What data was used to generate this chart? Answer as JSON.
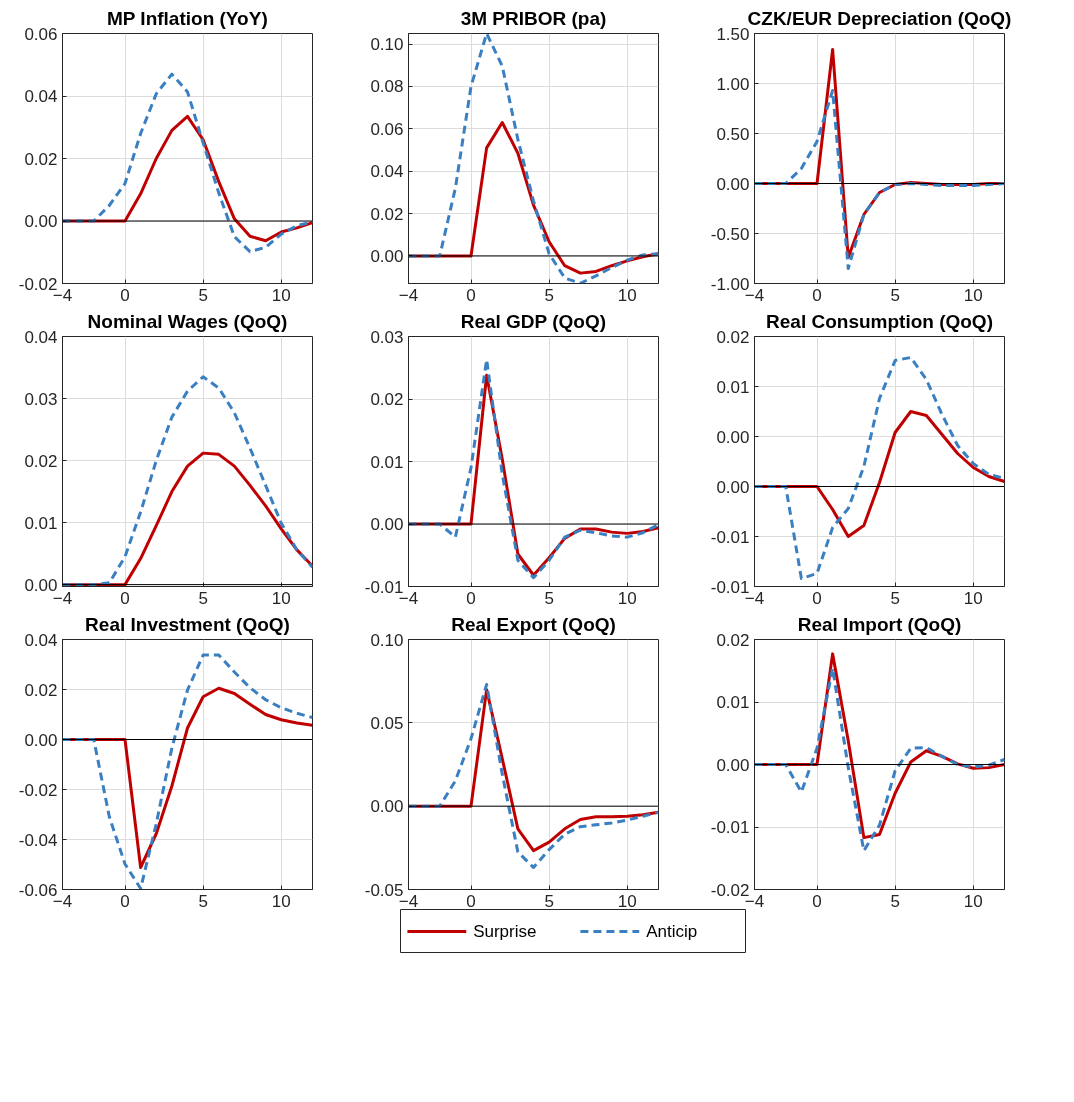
{
  "chart_data": [
    {
      "type": "line",
      "title": "MP Inflation (YoY)",
      "x": [
        -4,
        -3,
        -2,
        -1,
        0,
        1,
        2,
        3,
        4,
        5,
        6,
        7,
        8,
        9,
        10,
        11,
        12
      ],
      "xlim": [
        -4,
        12
      ],
      "xticks": [
        -4,
        0,
        5,
        10
      ],
      "ylim": [
        -0.02,
        0.06
      ],
      "yticks": [
        {
          "value": -0.02,
          "label": "-0.02"
        },
        {
          "value": 0,
          "label": "0.00"
        },
        {
          "value": 0.02,
          "label": "0.02"
        },
        {
          "value": 0.04,
          "label": "0.04"
        },
        {
          "value": 0.06,
          "label": "0.06"
        }
      ],
      "grid": true,
      "ref_lines": [
        {
          "axis": "y",
          "value": 0,
          "color": "#000000"
        }
      ],
      "series": [
        {
          "color": "#c00000",
          "line_style": "solid",
          "values": [
            0,
            0,
            0,
            0,
            0,
            0.0087,
            0.02,
            0.029,
            0.0335,
            0.026,
            0.0126,
            0.0007,
            -0.0049,
            -0.0063,
            -0.0035,
            -0.0022,
            -0.0005
          ]
        },
        {
          "color": "#3a7fc1",
          "line_style": "dashed",
          "values": [
            0,
            0,
            0,
            0.005,
            0.012,
            0.028,
            0.0407,
            0.047,
            0.0413,
            0.025,
            0.009,
            -0.005,
            -0.0098,
            -0.0084,
            -0.0042,
            -0.0015,
            -0.0003
          ]
        }
      ]
    },
    {
      "type": "line",
      "title": "3M PRIBOR (pa)",
      "x": [
        -4,
        -3,
        -2,
        -1,
        0,
        1,
        2,
        3,
        4,
        5,
        6,
        7,
        8,
        9,
        10,
        11,
        12
      ],
      "xlim": [
        -4,
        12
      ],
      "xticks": [
        -4,
        0,
        5,
        10
      ],
      "ylim": [
        -0.013,
        0.105
      ],
      "yticks": [
        {
          "value": 0,
          "label": "0.00"
        },
        {
          "value": 0.02,
          "label": "0.02"
        },
        {
          "value": 0.04,
          "label": "0.04"
        },
        {
          "value": 0.06,
          "label": "0.06"
        },
        {
          "value": 0.08,
          "label": "0.08"
        },
        {
          "value": 0.1,
          "label": "0.10"
        }
      ],
      "grid": true,
      "ref_lines": [
        {
          "axis": "y",
          "value": 0,
          "color": "#000000"
        }
      ],
      "series": [
        {
          "color": "#c00000",
          "line_style": "solid",
          "values": [
            0,
            0,
            0,
            0,
            0,
            0.051,
            0.063,
            0.0485,
            0.024,
            0.0067,
            -0.0046,
            -0.0081,
            -0.0073,
            -0.0046,
            -0.0023,
            -0.0004,
            0.001
          ]
        },
        {
          "color": "#3a7fc1",
          "line_style": "dashed",
          "values": [
            0,
            0,
            0,
            0.032,
            0.08,
            0.105,
            0.0896,
            0.055,
            0.026,
            0.001,
            -0.0104,
            -0.0129,
            -0.0094,
            -0.0055,
            -0.002,
            0.0005,
            0.001
          ]
        }
      ]
    },
    {
      "type": "line",
      "title": "CZK/EUR Depreciation (QoQ)",
      "x": [
        -4,
        -3,
        -2,
        -1,
        0,
        1,
        2,
        3,
        4,
        5,
        6,
        7,
        8,
        9,
        10,
        11,
        12
      ],
      "xlim": [
        -4,
        12
      ],
      "xticks": [
        -4,
        0,
        5,
        10
      ],
      "ylim": [
        -1.0,
        1.5
      ],
      "yticks": [
        {
          "value": -1,
          "label": "-1.00"
        },
        {
          "value": -0.5,
          "label": "-0.50"
        },
        {
          "value": 0,
          "label": "0.00"
        },
        {
          "value": 0.5,
          "label": "0.50"
        },
        {
          "value": 1,
          "label": "1.00"
        },
        {
          "value": 1.5,
          "label": "1.50"
        }
      ],
      "grid": true,
      "ref_lines": [
        {
          "axis": "y",
          "value": 0,
          "color": "#000000"
        }
      ],
      "series": [
        {
          "color": "#c00000",
          "line_style": "solid",
          "values": [
            0,
            0,
            0,
            0,
            0,
            1.34,
            -0.74,
            -0.31,
            -0.09,
            -0.01,
            0.01,
            0,
            -0.01,
            -0.01,
            -0.01,
            0,
            0
          ]
        },
        {
          "color": "#3a7fc1",
          "line_style": "dashed",
          "values": [
            0,
            0,
            0,
            0.15,
            0.42,
            0.93,
            -0.85,
            -0.31,
            -0.09,
            -0.01,
            0,
            -0.01,
            -0.02,
            -0.02,
            -0.02,
            -0.01,
            0
          ]
        }
      ]
    },
    {
      "type": "line",
      "title": "Nominal Wages (QoQ)",
      "x": [
        -4,
        -3,
        -2,
        -1,
        0,
        1,
        2,
        3,
        4,
        5,
        6,
        7,
        8,
        9,
        10,
        11,
        12
      ],
      "xlim": [
        -4,
        12
      ],
      "xticks": [
        -4,
        0,
        5,
        10
      ],
      "ylim": [
        -0.0003,
        0.04
      ],
      "yticks": [
        {
          "value": 0,
          "label": "0.00"
        },
        {
          "value": 0.01,
          "label": "0.01"
        },
        {
          "value": 0.02,
          "label": "0.02"
        },
        {
          "value": 0.03,
          "label": "0.03"
        },
        {
          "value": 0.04,
          "label": "0.04"
        }
      ],
      "grid": true,
      "ref_lines": [
        {
          "axis": "y",
          "value": 0,
          "color": "#000000"
        }
      ],
      "series": [
        {
          "color": "#c00000",
          "line_style": "solid",
          "values": [
            0,
            0,
            0,
            0,
            0,
            0.0042,
            0.0095,
            0.015,
            0.0191,
            0.0212,
            0.021,
            0.0191,
            0.016,
            0.0127,
            0.009,
            0.0056,
            0.003
          ]
        },
        {
          "color": "#3a7fc1",
          "line_style": "dashed",
          "values": [
            0,
            0,
            0,
            0.0003,
            0.0045,
            0.0117,
            0.02,
            0.027,
            0.0312,
            0.0335,
            0.0317,
            0.0277,
            0.022,
            0.016,
            0.0099,
            0.0056,
            0.0028
          ]
        }
      ]
    },
    {
      "type": "line",
      "title": "Real GDP (QoQ)",
      "x": [
        -4,
        -3,
        -2,
        -1,
        0,
        1,
        2,
        3,
        4,
        5,
        6,
        7,
        8,
        9,
        10,
        11,
        12
      ],
      "xlim": [
        -4,
        12
      ],
      "xticks": [
        -4,
        0,
        5,
        10
      ],
      "ylim": [
        -0.01,
        0.03
      ],
      "yticks": [
        {
          "value": -0.01,
          "label": "-0.01"
        },
        {
          "value": 0,
          "label": "0.00"
        },
        {
          "value": 0.01,
          "label": "0.01"
        },
        {
          "value": 0.02,
          "label": "0.02"
        },
        {
          "value": 0.03,
          "label": "0.03"
        }
      ],
      "grid": true,
      "ref_lines": [
        {
          "axis": "y",
          "value": 0,
          "color": "#000000"
        }
      ],
      "series": [
        {
          "color": "#c00000",
          "line_style": "solid",
          "values": [
            0,
            0,
            0,
            0,
            0,
            0.0238,
            0.0104,
            -0.0048,
            -0.0082,
            -0.0054,
            -0.0023,
            -0.0008,
            -0.0008,
            -0.0013,
            -0.0015,
            -0.0012,
            -0.0006
          ]
        },
        {
          "color": "#3a7fc1",
          "line_style": "dashed",
          "values": [
            0,
            0,
            0,
            -0.0021,
            0.009,
            0.0263,
            0.008,
            -0.0058,
            -0.0086,
            -0.0058,
            -0.0021,
            -0.001,
            -0.0014,
            -0.0019,
            -0.0021,
            -0.0014,
            -0.0001
          ]
        }
      ]
    },
    {
      "type": "line",
      "title": "Real Consumption (QoQ)",
      "x": [
        -4,
        -3,
        -2,
        -1,
        0,
        1,
        2,
        3,
        4,
        5,
        6,
        7,
        8,
        9,
        10,
        11,
        12
      ],
      "xlim": [
        -4,
        12
      ],
      "xticks": [
        -4,
        0,
        5,
        10
      ],
      "ylim": [
        -0.01,
        0.015
      ],
      "yticks": [
        {
          "value": -0.01,
          "label": "-0.01"
        },
        {
          "value": -0.005,
          "label": "-0.01"
        },
        {
          "value": 0,
          "label": "0.00"
        },
        {
          "value": 0.005,
          "label": "0.00"
        },
        {
          "value": 0.01,
          "label": "0.01"
        },
        {
          "value": 0.015,
          "label": "0.02"
        }
      ],
      "grid": true,
      "ref_lines": [
        {
          "axis": "y",
          "value": 0,
          "color": "#000000"
        }
      ],
      "series": [
        {
          "color": "#c00000",
          "line_style": "solid",
          "values": [
            0,
            0,
            0,
            0,
            0,
            -0.0023,
            -0.005,
            -0.0039,
            0.0004,
            0.0054,
            0.0075,
            0.0071,
            0.0052,
            0.0033,
            0.0019,
            0.001,
            0.0005
          ]
        },
        {
          "color": "#3a7fc1",
          "line_style": "dashed",
          "values": [
            0,
            0,
            0,
            -0.0092,
            -0.0087,
            -0.0041,
            -0.0022,
            0.002,
            0.0088,
            0.0126,
            0.0129,
            0.0107,
            0.0072,
            0.0041,
            0.0023,
            0.0012,
            0.0008
          ]
        }
      ]
    },
    {
      "type": "line",
      "title": "Real Investment (QoQ)",
      "x": [
        -4,
        -3,
        -2,
        -1,
        0,
        1,
        2,
        3,
        4,
        5,
        6,
        7,
        8,
        9,
        10,
        11,
        12
      ],
      "xlim": [
        -4,
        12
      ],
      "xticks": [
        -4,
        0,
        5,
        10
      ],
      "ylim": [
        -0.06,
        0.04
      ],
      "yticks": [
        {
          "value": -0.06,
          "label": "-0.06"
        },
        {
          "value": -0.04,
          "label": "-0.04"
        },
        {
          "value": -0.02,
          "label": "-0.02"
        },
        {
          "value": 0,
          "label": "0.00"
        },
        {
          "value": 0.02,
          "label": "0.02"
        },
        {
          "value": 0.04,
          "label": "0.04"
        }
      ],
      "grid": true,
      "ref_lines": [
        {
          "axis": "y",
          "value": 0,
          "color": "#000000"
        }
      ],
      "series": [
        {
          "color": "#c00000",
          "line_style": "solid",
          "values": [
            0,
            0,
            0,
            0,
            0,
            -0.0512,
            -0.0377,
            -0.0186,
            0.0046,
            0.0171,
            0.0205,
            0.0184,
            0.0141,
            0.01,
            0.0079,
            0.0066,
            0.0057
          ]
        },
        {
          "color": "#3a7fc1",
          "line_style": "dashed",
          "values": [
            0,
            0,
            0,
            -0.031,
            -0.0498,
            -0.0596,
            -0.0337,
            -0.0034,
            0.0198,
            0.0338,
            0.0338,
            0.027,
            0.0207,
            0.0159,
            0.0127,
            0.0105,
            0.0088
          ]
        }
      ]
    },
    {
      "type": "line",
      "title": "Real Export (QoQ)",
      "x": [
        -4,
        -3,
        -2,
        -1,
        0,
        1,
        2,
        3,
        4,
        5,
        6,
        7,
        8,
        9,
        10,
        11,
        12
      ],
      "xlim": [
        -4,
        12
      ],
      "xticks": [
        -4,
        0,
        5,
        10
      ],
      "ylim": [
        -0.05,
        0.1
      ],
      "yticks": [
        {
          "value": -0.05,
          "label": "-0.05"
        },
        {
          "value": 0,
          "label": "0.00"
        },
        {
          "value": 0.05,
          "label": "0.05"
        },
        {
          "value": 0.1,
          "label": "0.10"
        }
      ],
      "grid": true,
      "legend": "bottom",
      "ref_lines": [
        {
          "axis": "y",
          "value": 0,
          "color": "#000000"
        }
      ],
      "series": [
        {
          "name": "Surprise",
          "color": "#c00000",
          "line_style": "solid",
          "values": [
            0,
            0,
            0,
            0,
            0,
            0.0699,
            0.0285,
            -0.0136,
            -0.0267,
            -0.0216,
            -0.0136,
            -0.008,
            -0.0064,
            -0.0064,
            -0.0061,
            -0.0051,
            -0.0037
          ]
        },
        {
          "name": "Anticip",
          "color": "#3a7fc1",
          "line_style": "dashed",
          "values": [
            0,
            0,
            0,
            0.0152,
            0.0405,
            0.073,
            0.0192,
            -0.0275,
            -0.0368,
            -0.0261,
            -0.0168,
            -0.0123,
            -0.0112,
            -0.0101,
            -0.0083,
            -0.0061,
            -0.0037
          ]
        }
      ]
    },
    {
      "type": "line",
      "title": "Real Import (QoQ)",
      "x": [
        -4,
        -3,
        -2,
        -1,
        0,
        1,
        2,
        3,
        4,
        5,
        6,
        7,
        8,
        9,
        10,
        11,
        12
      ],
      "xlim": [
        -4,
        12
      ],
      "xticks": [
        -4,
        0,
        5,
        10
      ],
      "ylim": [
        -0.02,
        0.02
      ],
      "yticks": [
        {
          "value": -0.02,
          "label": "-0.02"
        },
        {
          "value": -0.01,
          "label": "-0.01"
        },
        {
          "value": 0,
          "label": "0.00"
        },
        {
          "value": 0.01,
          "label": "0.01"
        },
        {
          "value": 0.02,
          "label": "0.02"
        }
      ],
      "grid": true,
      "ref_lines": [
        {
          "axis": "y",
          "value": 0,
          "color": "#000000"
        }
      ],
      "series": [
        {
          "color": "#c00000",
          "line_style": "solid",
          "values": [
            0,
            0,
            0,
            0,
            0,
            0.0177,
            0.0038,
            -0.0117,
            -0.0112,
            -0.0046,
            0.0004,
            0.0022,
            0.0013,
            0.0001,
            -0.0006,
            -0.0005,
            0
          ]
        },
        {
          "color": "#3a7fc1",
          "line_style": "dashed",
          "values": [
            0,
            0,
            0,
            -0.0044,
            0.0026,
            0.0154,
            -0.0005,
            -0.0138,
            -0.0097,
            -0.001,
            0.0026,
            0.0027,
            0.0013,
            0,
            -0.0004,
            -0.0001,
            0.0008
          ]
        }
      ]
    }
  ]
}
